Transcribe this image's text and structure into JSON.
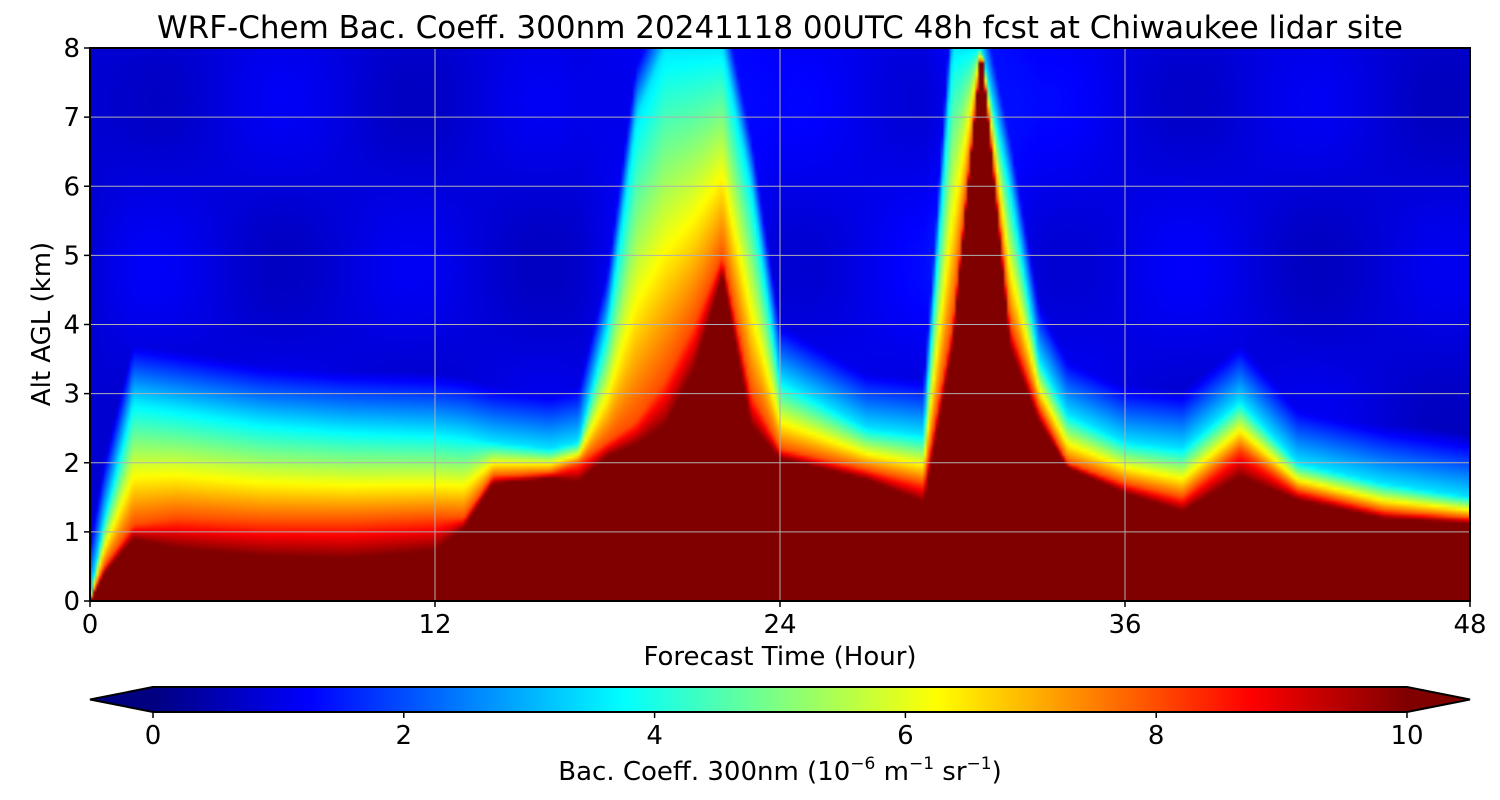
{
  "chart_data": {
    "type": "heatmap",
    "title": "WRF-Chem Bac. Coeff. 300nm  20241118 00UTC 48h fcst at Chiwaukee lidar site",
    "xlabel": "Forecast Time (Hour)",
    "ylabel": "Alt AGL (km)",
    "xlim": [
      0,
      48
    ],
    "ylim": [
      0,
      8
    ],
    "xticks": [
      0,
      12,
      24,
      36,
      48
    ],
    "yticks": [
      0,
      1,
      2,
      3,
      4,
      5,
      6,
      7,
      8
    ],
    "grid": true,
    "colormap": "jet",
    "colorbar": {
      "orientation": "horizontal",
      "placement": "bottom",
      "extend": "both",
      "range": [
        0,
        10
      ],
      "ticks": [
        0,
        2,
        4,
        6,
        8,
        10
      ],
      "label_prefix": "Bac. Coeff. 300nm  (10",
      "label_exp1": "−6",
      "label_mid": " m",
      "label_exp2": "−1",
      "label_mid2": " sr",
      "label_exp3": "−1",
      "label_suffix": ")"
    },
    "field_description": {
      "low_level_layer": {
        "altitude_top_km": [
          1.0,
          2.0
        ],
        "values": "10+ (saturated)"
      },
      "elevated_aerosol_layer_0_12h": {
        "altitude_km": [
          1,
          3
        ],
        "values": [
          4,
          6
        ]
      },
      "plume_around_22h": {
        "altitude_top_km": 5,
        "values": [
          6,
          10
        ]
      },
      "plume_around_31h": {
        "altitude_top_km": 8,
        "values": "10+"
      },
      "free_troposphere": {
        "values": [
          0,
          2
        ]
      }
    },
    "columns": [
      {
        "t": 0,
        "b": 0.0,
        "g": 0.0,
        "c": 0.05,
        "f": 0.6
      },
      {
        "t": 0.5,
        "b": 0.35,
        "g": 0.5,
        "c": 1.2,
        "f": 1.2
      },
      {
        "t": 1.5,
        "b": 0.8,
        "g": 1.1,
        "c": 2.9,
        "f": 1.6
      },
      {
        "t": 3,
        "b": 0.55,
        "g": 1.2,
        "c": 2.8,
        "f": 1.5
      },
      {
        "t": 6,
        "b": 0.4,
        "g": 1.15,
        "c": 2.6,
        "f": 1.4
      },
      {
        "t": 9,
        "b": 0.35,
        "g": 1.15,
        "c": 2.5,
        "f": 1.4
      },
      {
        "t": 12,
        "b": 0.5,
        "g": 1.2,
        "c": 2.45,
        "f": 1.3
      },
      {
        "t": 13,
        "b": 1.0,
        "g": 1.2,
        "c": 2.4,
        "f": 1.3
      },
      {
        "t": 14,
        "b": 1.65,
        "g": 1.8,
        "c": 2.3,
        "f": 1.3
      },
      {
        "t": 16,
        "b": 1.75,
        "g": 1.85,
        "c": 2.2,
        "f": 1.3
      },
      {
        "t": 17,
        "b": 1.6,
        "g": 2.0,
        "c": 2.3,
        "f": 1.3
      },
      {
        "t": 18,
        "b": 2.0,
        "g": 2.3,
        "c": 4.0,
        "f": 2.4
      },
      {
        "t": 19,
        "b": 2.1,
        "g": 2.6,
        "c": 7.0,
        "f": 3.6
      },
      {
        "t": 20,
        "b": 2.2,
        "g": 3.2,
        "c": 8.0,
        "f": 4.3
      },
      {
        "t": 21,
        "b": 3.0,
        "g": 4.0,
        "c": 8.0,
        "f": 4.6
      },
      {
        "t": 22,
        "b": 4.6,
        "g": 5.0,
        "c": 8.0,
        "f": 4.6
      },
      {
        "t": 23,
        "b": 2.3,
        "g": 3.0,
        "c": 6.0,
        "f": 3.4
      },
      {
        "t": 24,
        "b": 2.0,
        "g": 2.2,
        "c": 3.2,
        "f": 2.3
      },
      {
        "t": 27,
        "b": 1.7,
        "g": 1.9,
        "c": 2.5,
        "f": 2.2
      },
      {
        "t": 29,
        "b": 1.3,
        "g": 1.7,
        "c": 2.4,
        "f": 2.6
      },
      {
        "t": 30,
        "b": 3.5,
        "g": 4.0,
        "c": 8.0,
        "f": 4.6
      },
      {
        "t": 31,
        "b": 8.0,
        "g": 8.0,
        "c": 8.0,
        "f": 5.0
      },
      {
        "t": 32,
        "b": 3.5,
        "g": 4.0,
        "c": 6.0,
        "f": 3.8
      },
      {
        "t": 33,
        "b": 2.5,
        "g": 2.8,
        "c": 3.5,
        "f": 2.6
      },
      {
        "t": 34,
        "b": 1.9,
        "g": 2.0,
        "c": 2.7,
        "f": 2.3
      },
      {
        "t": 36,
        "b": 1.5,
        "g": 1.7,
        "c": 2.3,
        "f": 1.8
      },
      {
        "t": 38,
        "b": 1.2,
        "g": 1.5,
        "c": 2.2,
        "f": 1.8
      },
      {
        "t": 40,
        "b": 1.6,
        "g": 2.2,
        "c": 2.9,
        "f": 1.6
      },
      {
        "t": 42,
        "b": 1.4,
        "g": 1.6,
        "c": 2.0,
        "f": 1.3
      },
      {
        "t": 45,
        "b": 1.15,
        "g": 1.3,
        "c": 1.7,
        "f": 1.1
      },
      {
        "t": 48,
        "b": 1.1,
        "g": 1.2,
        "c": 1.5,
        "f": 1.1
      }
    ]
  }
}
